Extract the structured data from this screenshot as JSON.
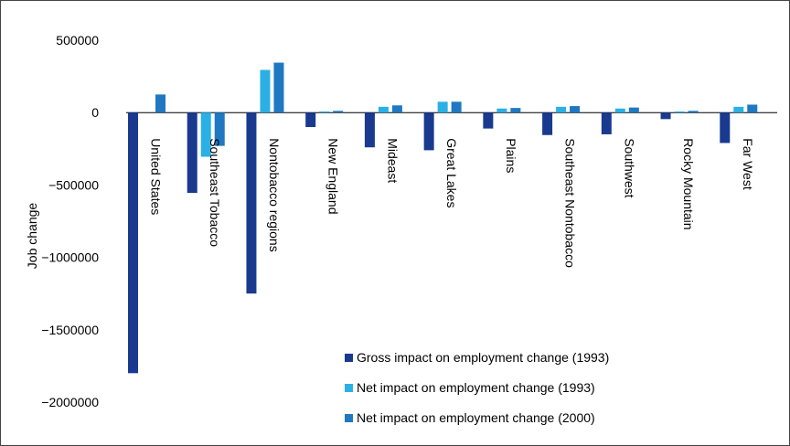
{
  "chart_data": {
    "type": "bar",
    "ylabel": "Job change",
    "ylim": [
      -2000000,
      500000
    ],
    "yticks": [
      500000,
      0,
      -500000,
      -1000000,
      -1500000,
      -2000000
    ],
    "ytick_labels": [
      "500000",
      "0",
      "−500000",
      "−1000000",
      "−1500000",
      "−2000000"
    ],
    "categories": [
      "United States",
      "Southeast Tobacco",
      "Nontobacco regions",
      "New England",
      "Mideast",
      "Great Lakes",
      "Plains",
      "Southeast Nontobacco",
      "Southwest",
      "Rocky Mountain",
      "Far West"
    ],
    "series": [
      {
        "name": "Gross impact on employment change (1993)",
        "color": "#1a3a8f",
        "values": [
          -1800000,
          -555000,
          -1250000,
          -100000,
          -240000,
          -260000,
          -110000,
          -155000,
          -150000,
          -45000,
          -210000
        ]
      },
      {
        "name": "Net impact on employment change (1993)",
        "color": "#2bb0e6",
        "values": [
          0,
          -305000,
          295000,
          8000,
          40000,
          75000,
          28000,
          40000,
          28000,
          8000,
          40000
        ]
      },
      {
        "name": "Net impact on employment change (2000)",
        "color": "#1f78c1",
        "values": [
          125000,
          -230000,
          345000,
          12000,
          50000,
          75000,
          32000,
          45000,
          35000,
          12000,
          55000
        ]
      }
    ],
    "legend_position": "bottom-right",
    "grid": false
  }
}
